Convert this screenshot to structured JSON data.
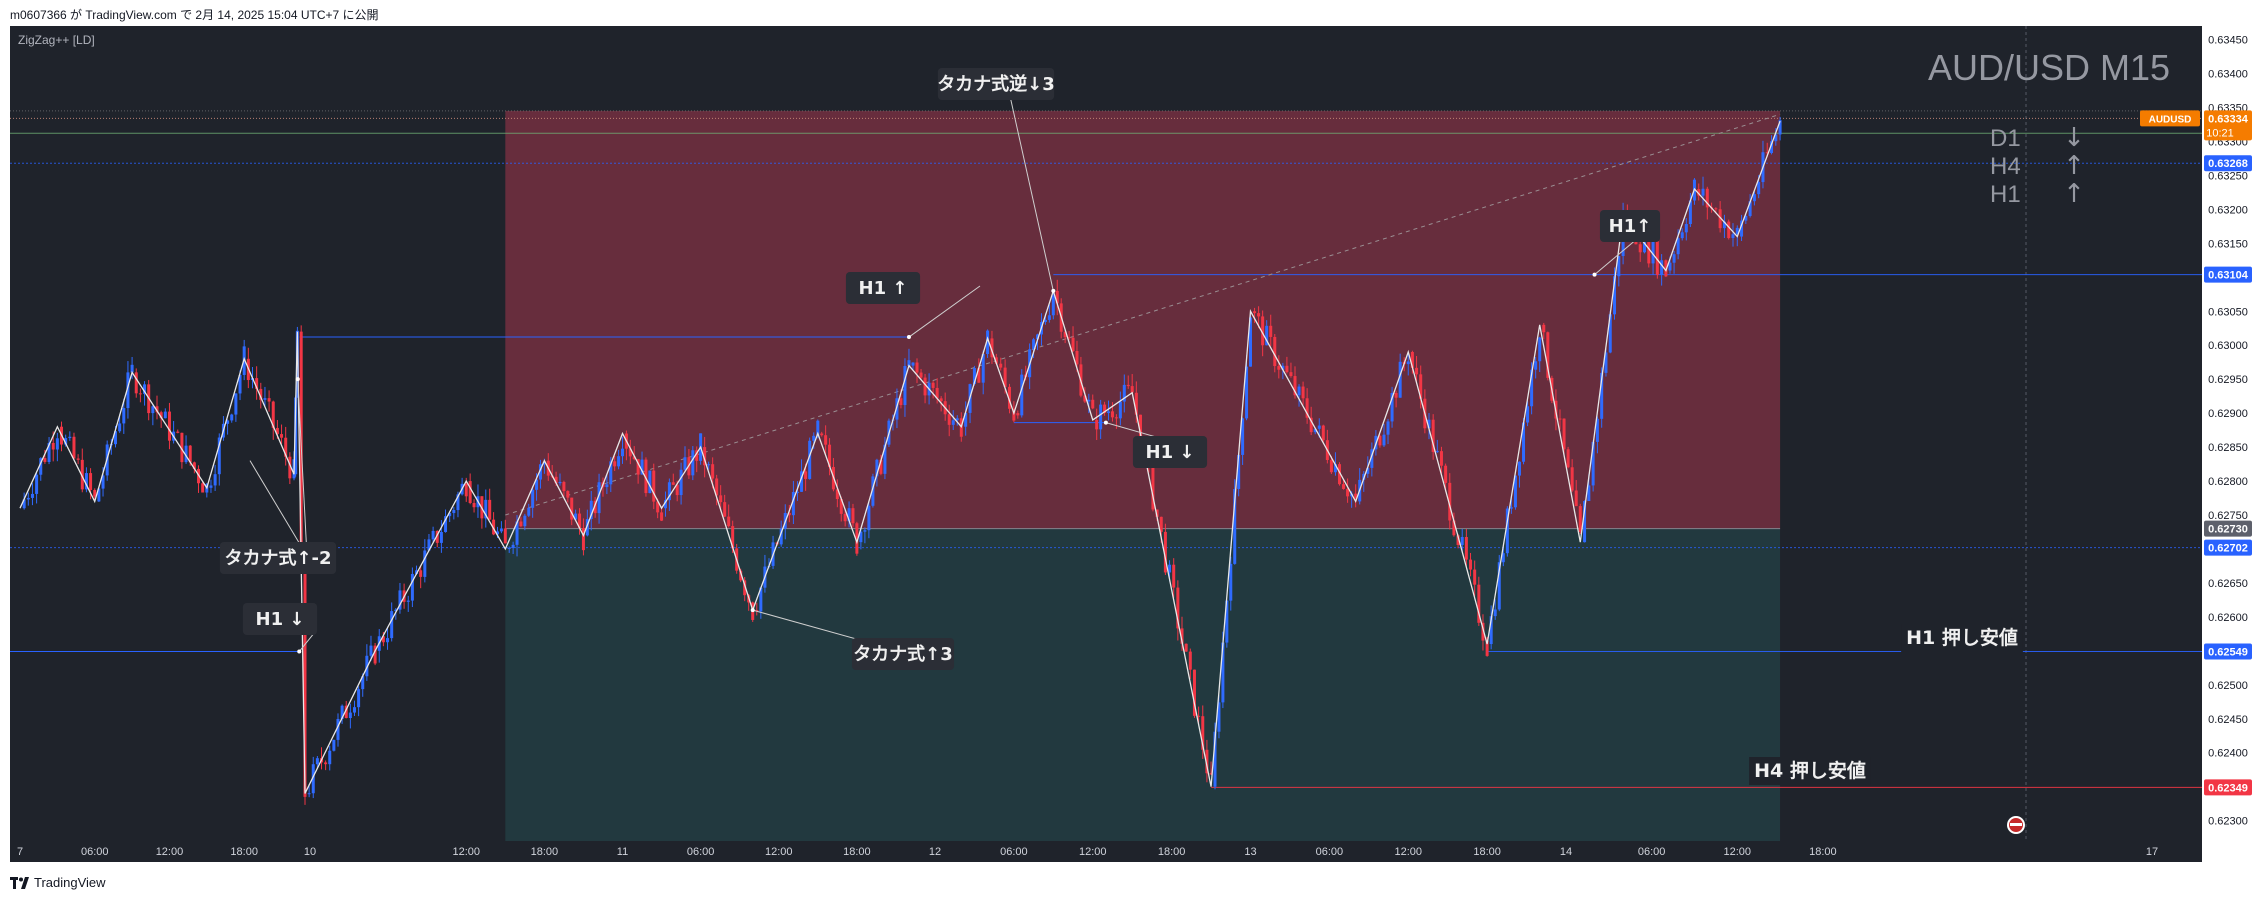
{
  "header": {
    "text": "m0607366 が TradingView.com で 2月 14, 2025 15:04 UTC+7 に公開"
  },
  "indicator": {
    "label": "ZigZag++ [LD]"
  },
  "footer": {
    "brand": "TradingView"
  },
  "watermark": {
    "symbol_tf": "AUD/USD M15"
  },
  "trend_table": [
    {
      "tf": "D1",
      "dir": "↓"
    },
    {
      "tf": "H4",
      "dir": "↑"
    },
    {
      "tf": "H1",
      "dir": "↑"
    }
  ],
  "colors": {
    "background": "#1f232b",
    "zone_red": "#6b2e3e",
    "zone_green": "#233b40",
    "candle_up": "#2f6bff",
    "candle_down": "#f23645",
    "zigzag": "#e8e8e8",
    "level_blue": "#2962ff",
    "level_red": "#f23645",
    "price_orange": "#f57c00"
  },
  "annotations": [
    {
      "id": "h1-up-1",
      "text": "H1 ↑",
      "price": 0.6306,
      "time": "2025-02-11 22:00"
    },
    {
      "id": "katakana-rev-down3",
      "text": "タカナ式逆↓3",
      "price": 0.6338,
      "time": "2025-02-12 08:00"
    },
    {
      "id": "h1-up-2",
      "text": "H1↑",
      "price": 0.63165,
      "time": "2025-02-14 04:00"
    },
    {
      "id": "h1-down-1",
      "text": "H1 ↓",
      "price": 0.62835,
      "time": "2025-02-12 11:00"
    },
    {
      "id": "katakana-up-2",
      "text": "タカナ式↑-2",
      "price": 0.6267,
      "time": "2025-02-09 16:00"
    },
    {
      "id": "h1-down-2",
      "text": "H1 ↓",
      "price": 0.6258,
      "time": "2025-02-09 16:00"
    },
    {
      "id": "katakana-up3",
      "text": "タカナ式↑3",
      "price": 0.6252,
      "time": "2025-02-11 07:00"
    },
    {
      "id": "h1-support",
      "text": "H1 押し安値",
      "price": 0.62549,
      "time": "2025-02-14 16:00"
    },
    {
      "id": "h4-support",
      "text": "H4 押し安値",
      "price": 0.62349,
      "time": "2025-02-13 21:00"
    }
  ],
  "chart_data": {
    "type": "candlestick",
    "symbol": "AUDUSD",
    "timeframe": "M15",
    "x_ticks": [
      "7",
      "06:00",
      "12:00",
      "18:00",
      "10",
      "12:00",
      "18:00",
      "11",
      "06:00",
      "12:00",
      "18:00",
      "12",
      "06:00",
      "12:00",
      "18:00",
      "13",
      "06:00",
      "12:00",
      "18:00",
      "14",
      "06:00",
      "12:00",
      "18:00",
      "17"
    ],
    "x_tick_times": [
      "2025-02-07 00:00",
      "2025-02-07 06:00",
      "2025-02-07 12:00",
      "2025-02-07 18:00",
      "2025-02-10 00:00",
      "2025-02-10 12:00",
      "2025-02-10 18:00",
      "2025-02-11 00:00",
      "2025-02-11 06:00",
      "2025-02-11 12:00",
      "2025-02-11 18:00",
      "2025-02-12 00:00",
      "2025-02-12 06:00",
      "2025-02-12 12:00",
      "2025-02-12 18:00",
      "2025-02-13 00:00",
      "2025-02-13 06:00",
      "2025-02-13 12:00",
      "2025-02-13 18:00",
      "2025-02-14 00:00",
      "2025-02-14 06:00",
      "2025-02-14 12:00",
      "2025-02-14 18:00",
      "2025-02-17 00:00"
    ],
    "y_ticks": [
      "0.63450",
      "0.63400",
      "0.63350",
      "0.63300",
      "0.63250",
      "0.63200",
      "0.63150",
      "0.63100",
      "0.63050",
      "0.63000",
      "0.62950",
      "0.62900",
      "0.62850",
      "0.62800",
      "0.62750",
      "0.62700",
      "0.62650",
      "0.62600",
      "0.62550",
      "0.62500",
      "0.62450",
      "0.62400",
      "0.62350",
      "0.62300"
    ],
    "y_range": [
      0.6227,
      0.6347
    ],
    "zigzag": [
      {
        "time": "2025-02-07 00:00",
        "price": 0.6276
      },
      {
        "time": "2025-02-07 03:00",
        "price": 0.6288
      },
      {
        "time": "2025-02-07 06:00",
        "price": 0.6277
      },
      {
        "time": "2025-02-07 09:00",
        "price": 0.6296
      },
      {
        "time": "2025-02-07 15:00",
        "price": 0.6279
      },
      {
        "time": "2025-02-07 18:00",
        "price": 0.6298
      },
      {
        "time": "2025-02-07 22:00",
        "price": 0.6281
      },
      {
        "time": "2025-02-09 01:00",
        "price": 0.6302
      },
      {
        "time": "2025-02-09 23:00",
        "price": 0.6234
      },
      {
        "time": "2025-02-10 05:00",
        "price": 0.6255
      },
      {
        "time": "2025-02-10 12:00",
        "price": 0.628
      },
      {
        "time": "2025-02-10 15:00",
        "price": 0.627
      },
      {
        "time": "2025-02-10 18:00",
        "price": 0.6283
      },
      {
        "time": "2025-02-10 21:00",
        "price": 0.6272
      },
      {
        "time": "2025-02-11 00:00",
        "price": 0.6287
      },
      {
        "time": "2025-02-11 03:00",
        "price": 0.6276
      },
      {
        "time": "2025-02-11 06:00",
        "price": 0.6285
      },
      {
        "time": "2025-02-11 10:00",
        "price": 0.6261
      },
      {
        "time": "2025-02-11 15:00",
        "price": 0.6287
      },
      {
        "time": "2025-02-11 18:00",
        "price": 0.6271
      },
      {
        "time": "2025-02-11 22:00",
        "price": 0.6297
      },
      {
        "time": "2025-02-12 02:00",
        "price": 0.6288
      },
      {
        "time": "2025-02-12 04:00",
        "price": 0.6301
      },
      {
        "time": "2025-02-12 06:00",
        "price": 0.629
      },
      {
        "time": "2025-02-12 09:00",
        "price": 0.6308
      },
      {
        "time": "2025-02-12 12:00",
        "price": 0.6289
      },
      {
        "time": "2025-02-12 15:00",
        "price": 0.6293
      },
      {
        "time": "2025-02-12 21:00",
        "price": 0.6235
      },
      {
        "time": "2025-02-13 00:00",
        "price": 0.6305
      },
      {
        "time": "2025-02-13 08:00",
        "price": 0.6277
      },
      {
        "time": "2025-02-13 12:00",
        "price": 0.6299
      },
      {
        "time": "2025-02-13 18:00",
        "price": 0.6256
      },
      {
        "time": "2025-02-13 22:00",
        "price": 0.6303
      },
      {
        "time": "2025-02-14 01:00",
        "price": 0.6271
      },
      {
        "time": "2025-02-14 04:00",
        "price": 0.6319
      },
      {
        "time": "2025-02-14 07:00",
        "price": 0.6311
      },
      {
        "time": "2025-02-14 09:00",
        "price": 0.6323
      },
      {
        "time": "2025-02-14 12:00",
        "price": 0.6316
      },
      {
        "time": "2025-02-14 15:00",
        "price": 0.6333
      }
    ],
    "horizontal_levels": [
      {
        "price": 0.63334,
        "label": "0.63334",
        "kind": "last-price",
        "color": "#f57c00"
      },
      {
        "price": 0.63268,
        "label": "0.63268",
        "kind": "level",
        "color": "#2962ff"
      },
      {
        "price": 0.63104,
        "label": "0.63104",
        "kind": "h1-high",
        "color": "#2962ff"
      },
      {
        "price": 0.6273,
        "label": "0.62730",
        "kind": "zone-mid",
        "color": "#787b86"
      },
      {
        "price": 0.62702,
        "label": "0.62702",
        "kind": "level",
        "color": "#2962ff"
      },
      {
        "price": 0.62549,
        "label": "0.62549",
        "kind": "h1-support",
        "color": "#2962ff"
      },
      {
        "price": 0.62349,
        "label": "0.62349",
        "kind": "h4-support",
        "color": "#f23645"
      }
    ],
    "last_price_tag": {
      "symbol": "AUDUSD",
      "price": "0.63334",
      "countdown": "10:21"
    },
    "zones": [
      {
        "kind": "red",
        "from": "2025-02-10 15:00",
        "to": "2025-02-14 15:00",
        "top": 0.63345,
        "bottom": 0.6273
      },
      {
        "kind": "green",
        "from": "2025-02-10 15:00",
        "to": "2025-02-14 15:00",
        "top": 0.6273,
        "bottom": 0.6227
      }
    ]
  }
}
